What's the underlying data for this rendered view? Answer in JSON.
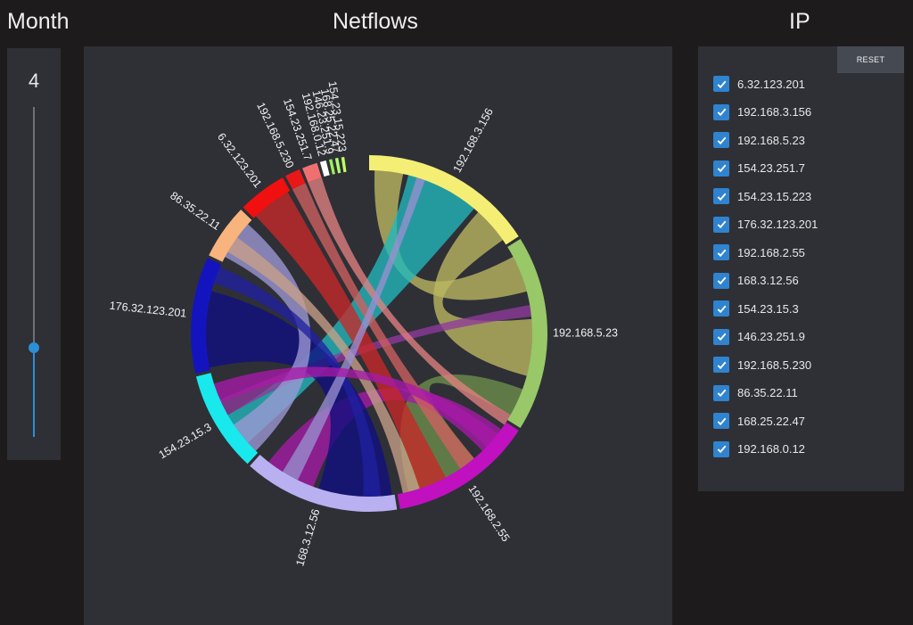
{
  "headers": {
    "month": "Month",
    "netflows": "Netflows",
    "ip": "IP"
  },
  "month_slider": {
    "value": "4",
    "position_fraction": 0.27
  },
  "reset_label": "RESET",
  "ip_list": [
    {
      "label": "6.32.123.201",
      "checked": true
    },
    {
      "label": "192.168.3.156",
      "checked": true
    },
    {
      "label": "192.168.5.23",
      "checked": true
    },
    {
      "label": "154.23.251.7",
      "checked": true
    },
    {
      "label": "154.23.15.223",
      "checked": true
    },
    {
      "label": "176.32.123.201",
      "checked": true
    },
    {
      "label": "192.168.2.55",
      "checked": true
    },
    {
      "label": "168.3.12.56",
      "checked": true
    },
    {
      "label": "154.23.15.3",
      "checked": true
    },
    {
      "label": "146.23.251.9",
      "checked": true
    },
    {
      "label": "192.168.5.230",
      "checked": true
    },
    {
      "label": "86.35.22.11",
      "checked": true
    },
    {
      "label": "168.25.22.47",
      "checked": true
    },
    {
      "label": "192.168.0.12",
      "checked": true
    }
  ],
  "chord": {
    "groups": [
      {
        "label": "192.168.3.156",
        "start": 0,
        "end": 57,
        "color": "#f4ef74"
      },
      {
        "label": "192.168.5.23",
        "start": 58,
        "end": 122,
        "color": "#98c868"
      },
      {
        "label": "192.168.2.55",
        "start": 123,
        "end": 170,
        "color": "#c010c0"
      },
      {
        "label": "168.3.12.56",
        "start": 171,
        "end": 222,
        "color": "#b8b0f0"
      },
      {
        "label": "154.23.15.3",
        "start": 223,
        "end": 256,
        "color": "#19e8ec"
      },
      {
        "label": "176.32.123.201",
        "start": 257,
        "end": 295,
        "color": "#1414bf"
      },
      {
        "label": "86.35.22.11",
        "start": 296,
        "end": 314,
        "color": "#f9b47e"
      },
      {
        "label": "6.32.123.201",
        "start": 315,
        "end": 331,
        "color": "#f01010"
      },
      {
        "label": "192.168.5.230",
        "start": 332,
        "end": 337,
        "color": "#e81818"
      },
      {
        "label": "154.23.251.7",
        "start": 338,
        "end": 343,
        "color": "#f07070"
      },
      {
        "label": "192.168.0.12",
        "start": 344,
        "end": 346,
        "color": "#ffffff"
      },
      {
        "label": "146.23.251.9",
        "start": 347,
        "end": 348,
        "color": "#9bf05a"
      },
      {
        "label": "168.25.22.47",
        "start": 349,
        "end": 350,
        "color": "#b0ff70"
      },
      {
        "label": "154.23.15.223",
        "start": 351,
        "end": 352,
        "color": "#c0ff60"
      }
    ],
    "ribbons": [
      {
        "a": [
          2,
          12
        ],
        "b": [
          62,
          75
        ],
        "color": "#bdb862"
      },
      {
        "a": [
          14,
          40
        ],
        "b": [
          228,
          240
        ],
        "color": "#21b9bd"
      },
      {
        "a": [
          42,
          55
        ],
        "b": [
          85,
          105
        ],
        "color": "#bdb862"
      },
      {
        "a": [
          110,
          120
        ],
        "b": [
          140,
          166
        ],
        "color": "#6d8f4b"
      },
      {
        "a": [
          80,
          84
        ],
        "b": [
          240,
          246
        ],
        "color": "#8f3a9b"
      },
      {
        "a": [
          126,
          136
        ],
        "b": [
          200,
          218
        ],
        "color": "#a51ba5"
      },
      {
        "a": [
          258,
          285
        ],
        "b": [
          172,
          198
        ],
        "color": "#101080"
      },
      {
        "a": [
          298,
          312
        ],
        "b": [
          224,
          236
        ],
        "color": "#9e98d6"
      },
      {
        "a": [
          316,
          330
        ],
        "b": [
          152,
          162
        ],
        "color": "#c82828"
      },
      {
        "a": [
          332,
          337
        ],
        "b": [
          140,
          146
        ],
        "color": "#d06060"
      },
      {
        "a": [
          338,
          343
        ],
        "b": [
          120,
          124
        ],
        "color": "#e08080"
      },
      {
        "a": [
          288,
          294
        ],
        "b": [
          176,
          182
        ],
        "color": "#2020a0"
      },
      {
        "a": [
          300,
          306
        ],
        "b": [
          162,
          168
        ],
        "color": "#c8a088"
      },
      {
        "a": [
          17,
          20
        ],
        "b": [
          206,
          212
        ],
        "color": "#9890d0"
      },
      {
        "a": [
          245,
          252
        ],
        "b": [
          128,
          134
        ],
        "color": "#a81aa8"
      }
    ]
  }
}
